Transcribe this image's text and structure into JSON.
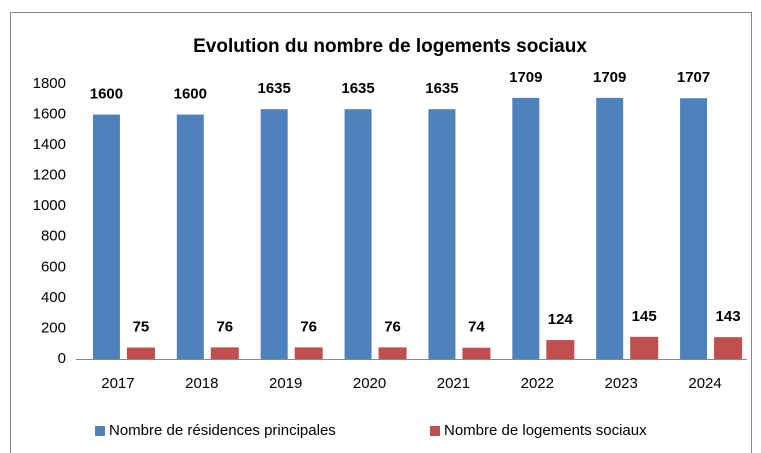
{
  "chart_data": {
    "type": "bar",
    "title": "Evolution du nombre de logements sociaux",
    "categories": [
      "2017",
      "2018",
      "2019",
      "2020",
      "2021",
      "2022",
      "2023",
      "2024"
    ],
    "series": [
      {
        "name": "Nombre de résidences principales",
        "color": "#4f81bd",
        "values": [
          1600,
          1600,
          1635,
          1635,
          1635,
          1709,
          1709,
          1707
        ]
      },
      {
        "name": "Nombre de logements sociaux",
        "color": "#c0504d",
        "values": [
          75,
          76,
          76,
          76,
          74,
          124,
          145,
          143
        ]
      }
    ],
    "ylim": [
      0,
      1800
    ],
    "yticks": [
      0,
      200,
      400,
      600,
      800,
      1000,
      1200,
      1400,
      1600,
      1800
    ],
    "grid": false,
    "legend": "bottom"
  }
}
